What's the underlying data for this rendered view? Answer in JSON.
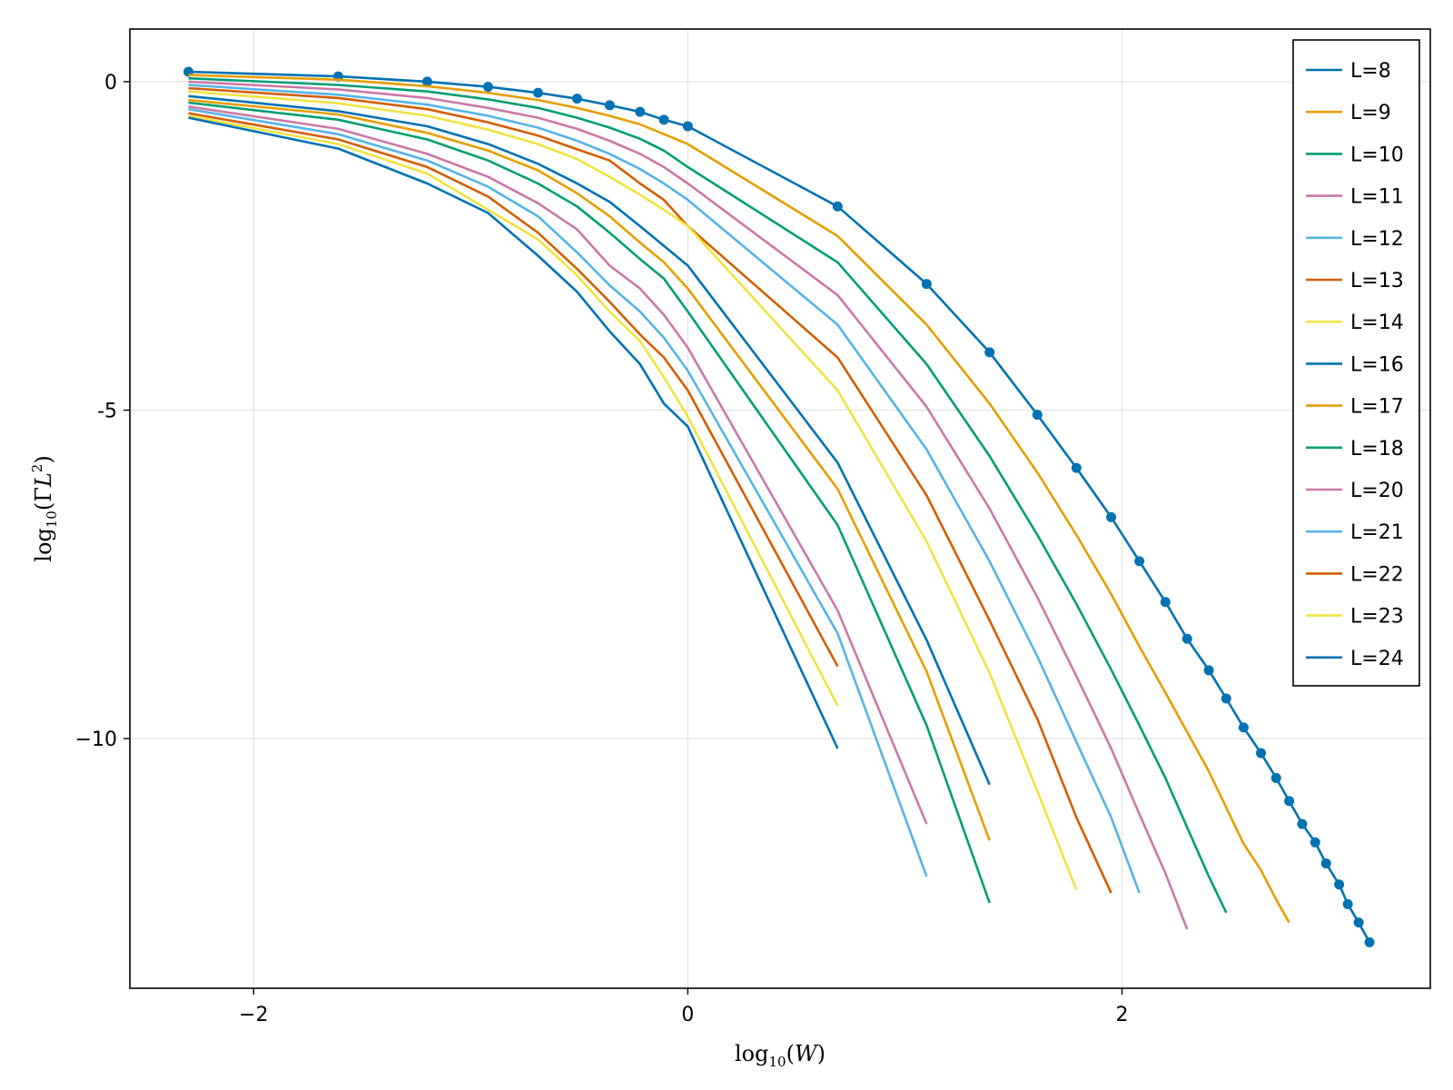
{
  "chart_data": {
    "type": "line",
    "xlabel": "log10(W)",
    "ylabel": "log10(ΓL²)",
    "xlim": [
      -2.57,
      3.42
    ],
    "ylim": [
      -13.8,
      0.8
    ],
    "xticks": [
      {
        "value": -2,
        "label": "−2"
      },
      {
        "value": 0,
        "label": "0"
      },
      {
        "value": 2,
        "label": "2"
      }
    ],
    "yticks": [
      {
        "value": 0,
        "label": "0"
      },
      {
        "value": -5,
        "label": "-5"
      },
      {
        "value": -10,
        "label": "−10"
      }
    ],
    "grid": true,
    "legend_position": "top-right",
    "series": [
      {
        "name": "L=8",
        "color": "#0072b2",
        "markers": true,
        "x": [
          -2.3,
          -1.61,
          -1.2,
          -0.92,
          -0.69,
          -0.51,
          -0.36,
          -0.22,
          -0.11,
          0.0,
          0.69,
          1.1,
          1.39,
          1.61,
          1.79,
          1.95,
          2.08,
          2.2,
          2.3,
          2.4,
          2.48,
          2.56,
          2.64,
          2.71,
          2.77,
          2.83,
          2.89,
          2.94,
          3.0,
          3.04,
          3.09,
          3.14
        ],
        "y": [
          0.15,
          0.08,
          0.0,
          -0.08,
          -0.17,
          -0.26,
          -0.36,
          -0.46,
          -0.58,
          -0.68,
          -1.9,
          -3.08,
          -4.12,
          -5.07,
          -5.88,
          -6.63,
          -7.3,
          -7.92,
          -8.48,
          -8.96,
          -9.39,
          -9.83,
          -10.22,
          -10.6,
          -10.95,
          -11.3,
          -11.58,
          -11.9,
          -12.22,
          -12.52,
          -12.8,
          -13.1
        ]
      },
      {
        "name": "L=9",
        "color": "#e69f00",
        "markers": false,
        "x": [
          -2.3,
          -1.61,
          -1.2,
          -0.92,
          -0.69,
          -0.51,
          -0.36,
          -0.22,
          -0.11,
          0.0,
          0.69,
          1.1,
          1.39,
          1.61,
          1.79,
          1.95,
          2.08,
          2.2,
          2.3,
          2.4,
          2.48,
          2.56,
          2.64,
          2.71,
          2.77
        ],
        "y": [
          0.1,
          0.03,
          -0.07,
          -0.17,
          -0.28,
          -0.4,
          -0.52,
          -0.65,
          -0.8,
          -0.95,
          -2.35,
          -3.7,
          -4.9,
          -5.95,
          -6.9,
          -7.8,
          -8.6,
          -9.3,
          -9.9,
          -10.5,
          -11.05,
          -11.6,
          -12.0,
          -12.45,
          -12.8
        ]
      },
      {
        "name": "L=10",
        "color": "#009e73",
        "markers": false,
        "x": [
          -2.3,
          -1.61,
          -1.2,
          -0.92,
          -0.69,
          -0.51,
          -0.36,
          -0.22,
          -0.11,
          0.0,
          0.69,
          1.1,
          1.39,
          1.61,
          1.79,
          1.95,
          2.08,
          2.2,
          2.3,
          2.4,
          2.48
        ],
        "y": [
          0.05,
          -0.05,
          -0.15,
          -0.27,
          -0.4,
          -0.55,
          -0.7,
          -0.87,
          -1.05,
          -1.3,
          -2.75,
          -4.3,
          -5.7,
          -6.9,
          -7.95,
          -8.95,
          -9.8,
          -10.6,
          -11.35,
          -12.1,
          -12.65
        ]
      },
      {
        "name": "L=11",
        "color": "#cc79a7",
        "markers": false,
        "x": [
          -2.3,
          -1.61,
          -1.2,
          -0.92,
          -0.69,
          -0.51,
          -0.36,
          -0.22,
          -0.11,
          0.0,
          0.69,
          1.1,
          1.39,
          1.61,
          1.79,
          1.95,
          2.08,
          2.2,
          2.3
        ],
        "y": [
          0.0,
          -0.12,
          -0.25,
          -0.4,
          -0.55,
          -0.72,
          -0.9,
          -1.1,
          -1.3,
          -1.55,
          -3.25,
          -4.95,
          -6.5,
          -7.85,
          -9.05,
          -10.15,
          -11.15,
          -12.05,
          -12.9
        ]
      },
      {
        "name": "L=12",
        "color": "#56b4e9",
        "markers": false,
        "x": [
          -2.3,
          -1.61,
          -1.2,
          -0.92,
          -0.69,
          -0.51,
          -0.36,
          -0.22,
          -0.11,
          0.0,
          0.69,
          1.1,
          1.39,
          1.61,
          1.79,
          1.95,
          2.08
        ],
        "y": [
          -0.05,
          -0.2,
          -0.35,
          -0.52,
          -0.7,
          -0.9,
          -1.1,
          -1.33,
          -1.55,
          -1.8,
          -3.7,
          -5.6,
          -7.3,
          -8.75,
          -10.05,
          -11.2,
          -12.35
        ]
      },
      {
        "name": "L=13",
        "color": "#d55e00",
        "markers": false,
        "x": [
          -2.3,
          -1.61,
          -1.2,
          -0.92,
          -0.69,
          -0.51,
          -0.36,
          -0.22,
          -0.11,
          0.0,
          0.69,
          1.1,
          1.39,
          1.61,
          1.79,
          1.95
        ],
        "y": [
          -0.1,
          -0.25,
          -0.42,
          -0.62,
          -0.82,
          -1.03,
          -1.2,
          -1.55,
          -1.8,
          -2.2,
          -4.2,
          -6.3,
          -8.2,
          -9.7,
          -11.2,
          -12.35
        ]
      },
      {
        "name": "L=14",
        "color": "#f0e442",
        "markers": false,
        "x": [
          -2.3,
          -1.61,
          -1.2,
          -0.92,
          -0.69,
          -0.51,
          -0.36,
          -0.22,
          -0.11,
          0.0,
          0.69,
          1.1,
          1.39,
          1.61,
          1.79
        ],
        "y": [
          -0.15,
          -0.33,
          -0.52,
          -0.73,
          -0.95,
          -1.18,
          -1.45,
          -1.72,
          -1.95,
          -2.2,
          -4.7,
          -7.0,
          -9.0,
          -10.8,
          -12.3
        ]
      },
      {
        "name": "L=16",
        "color": "#0072b2",
        "markers": false,
        "x": [
          -2.3,
          -1.61,
          -1.2,
          -0.92,
          -0.69,
          -0.51,
          -0.36,
          -0.22,
          -0.11,
          0.0,
          0.69,
          1.1,
          1.39
        ],
        "y": [
          -0.22,
          -0.45,
          -0.68,
          -0.95,
          -1.25,
          -1.55,
          -1.83,
          -2.2,
          -2.5,
          -2.8,
          -5.8,
          -8.5,
          -10.7
        ]
      },
      {
        "name": "L=17",
        "color": "#e69f00",
        "markers": false,
        "x": [
          -2.3,
          -1.61,
          -1.2,
          -0.92,
          -0.69,
          -0.51,
          -0.36,
          -0.22,
          -0.11,
          0.0,
          0.69,
          1.1,
          1.39
        ],
        "y": [
          -0.28,
          -0.5,
          -0.78,
          -1.05,
          -1.35,
          -1.7,
          -2.05,
          -2.45,
          -2.75,
          -3.15,
          -6.2,
          -8.98,
          -11.55
        ]
      },
      {
        "name": "L=18",
        "color": "#009e73",
        "markers": false,
        "x": [
          -2.3,
          -1.61,
          -1.2,
          -0.92,
          -0.69,
          -0.51,
          -0.36,
          -0.22,
          -0.11,
          0.0,
          0.69,
          1.1,
          1.39
        ],
        "y": [
          -0.32,
          -0.58,
          -0.88,
          -1.2,
          -1.55,
          -1.9,
          -2.3,
          -2.7,
          -3.0,
          -3.5,
          -6.75,
          -9.8,
          -12.5
        ]
      },
      {
        "name": "L=20",
        "color": "#cc79a7",
        "markers": false,
        "x": [
          -2.3,
          -1.61,
          -1.2,
          -0.92,
          -0.69,
          -0.51,
          -0.36,
          -0.22,
          -0.11,
          0.0,
          0.69,
          1.1
        ],
        "y": [
          -0.38,
          -0.72,
          -1.1,
          -1.45,
          -1.85,
          -2.25,
          -2.8,
          -3.15,
          -3.55,
          -4.05,
          -8.05,
          -11.3
        ]
      },
      {
        "name": "L=21",
        "color": "#56b4e9",
        "markers": false,
        "x": [
          -2.3,
          -1.61,
          -1.2,
          -0.92,
          -0.69,
          -0.51,
          -0.36,
          -0.22,
          -0.11,
          0.0,
          0.69,
          1.1
        ],
        "y": [
          -0.42,
          -0.8,
          -1.2,
          -1.6,
          -2.05,
          -2.6,
          -3.1,
          -3.5,
          -3.9,
          -4.4,
          -8.4,
          -12.1
        ]
      },
      {
        "name": "L=22",
        "color": "#d55e00",
        "markers": false,
        "x": [
          -2.3,
          -1.61,
          -1.2,
          -0.92,
          -0.69,
          -0.51,
          -0.36,
          -0.22,
          -0.11,
          0.0,
          0.69
        ],
        "y": [
          -0.48,
          -0.88,
          -1.3,
          -1.75,
          -2.3,
          -2.85,
          -3.35,
          -3.85,
          -4.2,
          -4.7,
          -8.9
        ]
      },
      {
        "name": "L=23",
        "color": "#f0e442",
        "markers": false,
        "x": [
          -2.3,
          -1.61,
          -1.2,
          -0.92,
          -0.69,
          -0.51,
          -0.36,
          -0.22,
          -0.11,
          0.0,
          0.69
        ],
        "y": [
          -0.52,
          -0.95,
          -1.4,
          -1.95,
          -2.4,
          -2.95,
          -3.5,
          -3.95,
          -4.5,
          -5.1,
          -9.5
        ]
      },
      {
        "name": "L=24",
        "color": "#0072b2",
        "markers": false,
        "x": [
          -2.3,
          -1.61,
          -1.2,
          -0.92,
          -0.69,
          -0.51,
          -0.36,
          -0.22,
          -0.11,
          0.0,
          0.69
        ],
        "y": [
          -0.55,
          -1.02,
          -1.55,
          -2.0,
          -2.65,
          -3.2,
          -3.8,
          -4.3,
          -4.9,
          -5.25,
          -10.15
        ]
      }
    ]
  }
}
